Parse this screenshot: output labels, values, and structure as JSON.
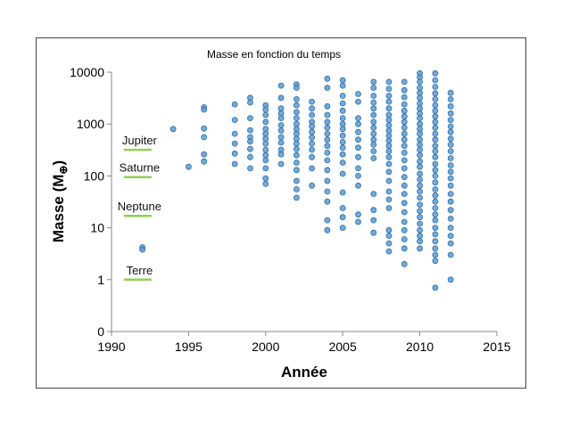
{
  "chart_data": {
    "type": "scatter",
    "title": "Masse en fonction du temps",
    "xlabel": "Année",
    "ylabel_main": "Masse (M",
    "ylabel_symbol": "⊕",
    "ylabel_close": ")",
    "xlim": [
      1990,
      2015
    ],
    "ylim_log": [
      1,
      10000
    ],
    "yscale": "log",
    "x_ticks": [
      1990,
      1995,
      2000,
      2005,
      2010,
      2015
    ],
    "x_tick_labels": [
      "1990",
      "1995",
      "2000",
      "2005",
      "2010",
      "2015"
    ],
    "y_tick_labels": [
      "0",
      "1",
      "10",
      "100",
      "1000",
      "10000"
    ],
    "y_tick_values": [
      0.1,
      1,
      10,
      100,
      1000,
      10000
    ],
    "grid": false,
    "marker_color": "#5b9bd5",
    "marker_edge": "#2e6da4",
    "reference_line_color": "#92d050",
    "reference_lines": [
      {
        "label": "Jupiter",
        "value": 318
      },
      {
        "label": "Saturne",
        "value": 95
      },
      {
        "label": "Neptune",
        "value": 17
      },
      {
        "label": "Terre",
        "value": 1
      }
    ],
    "points": [
      [
        1992,
        4.2
      ],
      [
        1992,
        3.8
      ],
      [
        1994,
        800
      ],
      [
        1995,
        150
      ],
      [
        1996,
        2100
      ],
      [
        1996,
        1900
      ],
      [
        1996,
        820
      ],
      [
        1996,
        560
      ],
      [
        1996,
        260
      ],
      [
        1996,
        190
      ],
      [
        1998,
        2400
      ],
      [
        1998,
        1200
      ],
      [
        1998,
        650
      ],
      [
        1998,
        420
      ],
      [
        1998,
        270
      ],
      [
        1998,
        170
      ],
      [
        1999,
        3200
      ],
      [
        1999,
        2600
      ],
      [
        1999,
        1300
      ],
      [
        1999,
        760
      ],
      [
        1999,
        560
      ],
      [
        1999,
        460
      ],
      [
        1999,
        330
      ],
      [
        1999,
        230
      ],
      [
        1999,
        140
      ],
      [
        2000,
        2300
      ],
      [
        2000,
        1900
      ],
      [
        2000,
        1500
      ],
      [
        2000,
        1100
      ],
      [
        2000,
        800
      ],
      [
        2000,
        650
      ],
      [
        2000,
        520
      ],
      [
        2000,
        420
      ],
      [
        2000,
        320
      ],
      [
        2000,
        250
      ],
      [
        2000,
        200
      ],
      [
        2000,
        140
      ],
      [
        2000,
        90
      ],
      [
        2000,
        70
      ],
      [
        2001,
        5500
      ],
      [
        2001,
        3200
      ],
      [
        2001,
        2000
      ],
      [
        2001,
        1600
      ],
      [
        2001,
        1300
      ],
      [
        2001,
        950
      ],
      [
        2001,
        750
      ],
      [
        2001,
        560
      ],
      [
        2001,
        440
      ],
      [
        2001,
        320
      ],
      [
        2001,
        260
      ],
      [
        2001,
        170
      ],
      [
        2002,
        5800
      ],
      [
        2002,
        5000
      ],
      [
        2002,
        3000
      ],
      [
        2002,
        2300
      ],
      [
        2002,
        1700
      ],
      [
        2002,
        1300
      ],
      [
        2002,
        1000
      ],
      [
        2002,
        800
      ],
      [
        2002,
        650
      ],
      [
        2002,
        520
      ],
      [
        2002,
        420
      ],
      [
        2002,
        330
      ],
      [
        2002,
        250
      ],
      [
        2002,
        180
      ],
      [
        2002,
        130
      ],
      [
        2002,
        80
      ],
      [
        2002,
        55
      ],
      [
        2002,
        38
      ],
      [
        2003,
        2700
      ],
      [
        2003,
        2000
      ],
      [
        2003,
        1500
      ],
      [
        2003,
        1100
      ],
      [
        2003,
        900
      ],
      [
        2003,
        700
      ],
      [
        2003,
        550
      ],
      [
        2003,
        420
      ],
      [
        2003,
        320
      ],
      [
        2003,
        230
      ],
      [
        2003,
        140
      ],
      [
        2003,
        65
      ],
      [
        2004,
        7500
      ],
      [
        2004,
        5000
      ],
      [
        2004,
        2200
      ],
      [
        2004,
        1500
      ],
      [
        2004,
        1100
      ],
      [
        2004,
        850
      ],
      [
        2004,
        650
      ],
      [
        2004,
        500
      ],
      [
        2004,
        380
      ],
      [
        2004,
        280
      ],
      [
        2004,
        200
      ],
      [
        2004,
        130
      ],
      [
        2004,
        80
      ],
      [
        2004,
        50
      ],
      [
        2004,
        32
      ],
      [
        2004,
        14
      ],
      [
        2004,
        9
      ],
      [
        2005,
        7000
      ],
      [
        2005,
        5500
      ],
      [
        2005,
        3500
      ],
      [
        2005,
        2500
      ],
      [
        2005,
        1800
      ],
      [
        2005,
        1300
      ],
      [
        2005,
        1000
      ],
      [
        2005,
        800
      ],
      [
        2005,
        600
      ],
      [
        2005,
        450
      ],
      [
        2005,
        350
      ],
      [
        2005,
        260
      ],
      [
        2005,
        180
      ],
      [
        2005,
        110
      ],
      [
        2005,
        48
      ],
      [
        2005,
        24
      ],
      [
        2005,
        16
      ],
      [
        2005,
        10
      ],
      [
        2006,
        3800
      ],
      [
        2006,
        2700
      ],
      [
        2006,
        1300
      ],
      [
        2006,
        1000
      ],
      [
        2006,
        700
      ],
      [
        2006,
        500
      ],
      [
        2006,
        350
      ],
      [
        2006,
        230
      ],
      [
        2006,
        140
      ],
      [
        2006,
        100
      ],
      [
        2006,
        65
      ],
      [
        2006,
        18
      ],
      [
        2006,
        13
      ],
      [
        2007,
        6500
      ],
      [
        2007,
        5000
      ],
      [
        2007,
        3500
      ],
      [
        2007,
        2600
      ],
      [
        2007,
        2000
      ],
      [
        2007,
        1500
      ],
      [
        2007,
        1100
      ],
      [
        2007,
        850
      ],
      [
        2007,
        650
      ],
      [
        2007,
        500
      ],
      [
        2007,
        400
      ],
      [
        2007,
        300
      ],
      [
        2007,
        220
      ],
      [
        2007,
        45
      ],
      [
        2007,
        22
      ],
      [
        2007,
        14
      ],
      [
        2007,
        8
      ],
      [
        2008,
        6500
      ],
      [
        2008,
        4800
      ],
      [
        2008,
        3500
      ],
      [
        2008,
        2700
      ],
      [
        2008,
        2000
      ],
      [
        2008,
        1500
      ],
      [
        2008,
        1200
      ],
      [
        2008,
        950
      ],
      [
        2008,
        750
      ],
      [
        2008,
        600
      ],
      [
        2008,
        480
      ],
      [
        2008,
        380
      ],
      [
        2008,
        300
      ],
      [
        2008,
        230
      ],
      [
        2008,
        170
      ],
      [
        2008,
        120
      ],
      [
        2008,
        80
      ],
      [
        2008,
        50
      ],
      [
        2008,
        35
      ],
      [
        2008,
        24
      ],
      [
        2008,
        9
      ],
      [
        2008,
        7
      ],
      [
        2008,
        5
      ],
      [
        2008,
        3.5
      ],
      [
        2009,
        6500
      ],
      [
        2009,
        4500
      ],
      [
        2009,
        3300
      ],
      [
        2009,
        2400
      ],
      [
        2009,
        1800
      ],
      [
        2009,
        1400
      ],
      [
        2009,
        1100
      ],
      [
        2009,
        850
      ],
      [
        2009,
        650
      ],
      [
        2009,
        500
      ],
      [
        2009,
        380
      ],
      [
        2009,
        280
      ],
      [
        2009,
        200
      ],
      [
        2009,
        140
      ],
      [
        2009,
        95
      ],
      [
        2009,
        65
      ],
      [
        2009,
        45
      ],
      [
        2009,
        30
      ],
      [
        2009,
        20
      ],
      [
        2009,
        13
      ],
      [
        2009,
        9
      ],
      [
        2009,
        6
      ],
      [
        2009,
        4
      ],
      [
        2009,
        2
      ],
      [
        2010,
        9500
      ],
      [
        2010,
        8000
      ],
      [
        2010,
        6500
      ],
      [
        2010,
        5000
      ],
      [
        2010,
        4000
      ],
      [
        2010,
        3200
      ],
      [
        2010,
        2500
      ],
      [
        2010,
        2000
      ],
      [
        2010,
        1600
      ],
      [
        2010,
        1300
      ],
      [
        2010,
        1000
      ],
      [
        2010,
        800
      ],
      [
        2010,
        650
      ],
      [
        2010,
        500
      ],
      [
        2010,
        400
      ],
      [
        2010,
        320
      ],
      [
        2010,
        250
      ],
      [
        2010,
        190
      ],
      [
        2010,
        150
      ],
      [
        2010,
        110
      ],
      [
        2010,
        85
      ],
      [
        2010,
        65
      ],
      [
        2010,
        50
      ],
      [
        2010,
        38
      ],
      [
        2010,
        28
      ],
      [
        2010,
        21
      ],
      [
        2010,
        16
      ],
      [
        2010,
        12
      ],
      [
        2010,
        9
      ],
      [
        2010,
        7
      ],
      [
        2010,
        5.5
      ],
      [
        2010,
        4
      ],
      [
        2011,
        9500
      ],
      [
        2011,
        7000
      ],
      [
        2011,
        5200
      ],
      [
        2011,
        3900
      ],
      [
        2011,
        3000
      ],
      [
        2011,
        2300
      ],
      [
        2011,
        1800
      ],
      [
        2011,
        1400
      ],
      [
        2011,
        1100
      ],
      [
        2011,
        850
      ],
      [
        2011,
        650
      ],
      [
        2011,
        500
      ],
      [
        2011,
        380
      ],
      [
        2011,
        300
      ],
      [
        2011,
        230
      ],
      [
        2011,
        170
      ],
      [
        2011,
        130
      ],
      [
        2011,
        100
      ],
      [
        2011,
        75
      ],
      [
        2011,
        55
      ],
      [
        2011,
        42
      ],
      [
        2011,
        32
      ],
      [
        2011,
        24
      ],
      [
        2011,
        18
      ],
      [
        2011,
        14
      ],
      [
        2011,
        10
      ],
      [
        2011,
        7.5
      ],
      [
        2011,
        5.5
      ],
      [
        2011,
        4
      ],
      [
        2011,
        3
      ],
      [
        2011,
        2.3
      ],
      [
        2011,
        0.7
      ],
      [
        2012,
        4000
      ],
      [
        2012,
        3000
      ],
      [
        2012,
        2200
      ],
      [
        2012,
        1600
      ],
      [
        2012,
        1200
      ],
      [
        2012,
        900
      ],
      [
        2012,
        700
      ],
      [
        2012,
        520
      ],
      [
        2012,
        400
      ],
      [
        2012,
        300
      ],
      [
        2012,
        220
      ],
      [
        2012,
        160
      ],
      [
        2012,
        120
      ],
      [
        2012,
        90
      ],
      [
        2012,
        65
      ],
      [
        2012,
        45
      ],
      [
        2012,
        32
      ],
      [
        2012,
        22
      ],
      [
        2012,
        15
      ],
      [
        2012,
        10
      ],
      [
        2012,
        7
      ],
      [
        2012,
        5
      ],
      [
        2012,
        3
      ],
      [
        2012,
        1
      ]
    ]
  }
}
